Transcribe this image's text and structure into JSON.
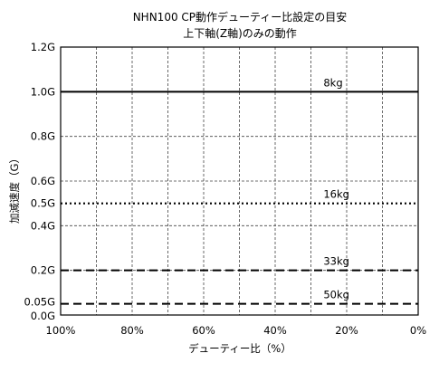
{
  "chart_data": {
    "type": "line",
    "title": "NHN100 CP動作デューティー比設定の目安",
    "subtitle": "上下軸(Z軸)のみの動作",
    "xlabel": "デューティー比（%）",
    "ylabel": "加減速度（G）",
    "x_ticks": [
      "100%",
      "80%",
      "60%",
      "40%",
      "20%",
      "0%"
    ],
    "x_tick_values": [
      100,
      80,
      60,
      40,
      20,
      0
    ],
    "xlim": [
      100,
      0
    ],
    "x_reversed": true,
    "y_ticks": [
      "1.2G",
      "1.0G",
      "0.8G",
      "0.6G",
      "0.5G",
      "0.4G",
      "0.2G",
      "0.05G",
      "0.0G"
    ],
    "y_tick_values": [
      1.2,
      1.0,
      0.8,
      0.6,
      0.5,
      0.4,
      0.2,
      0.05,
      0.0
    ],
    "ylim": [
      0,
      1.2
    ],
    "grid": true,
    "x_grid_values": [
      100,
      90,
      80,
      70,
      60,
      50,
      40,
      30,
      20,
      10,
      0
    ],
    "y_grid_values": [
      1.2,
      1.0,
      0.8,
      0.6,
      0.4,
      0.2,
      0.0
    ],
    "series": [
      {
        "name": "8kg",
        "x": [
          100,
          0
        ],
        "y": [
          1.0,
          1.0
        ],
        "line_style": "solid",
        "label_x": 27
      },
      {
        "name": "16kg",
        "x": [
          100,
          0
        ],
        "y": [
          0.5,
          0.5
        ],
        "line_style": "dotted",
        "label_x": 27
      },
      {
        "name": "33kg",
        "x": [
          100,
          0
        ],
        "y": [
          0.2,
          0.2
        ],
        "line_style": "dashed",
        "label_x": 27
      },
      {
        "name": "50kg",
        "x": [
          100,
          0
        ],
        "y": [
          0.05,
          0.05
        ],
        "line_style": "dashed",
        "label_x": 27
      }
    ],
    "colors": {
      "line": "#000000",
      "grid": "#444444",
      "background": "#ffffff"
    }
  }
}
